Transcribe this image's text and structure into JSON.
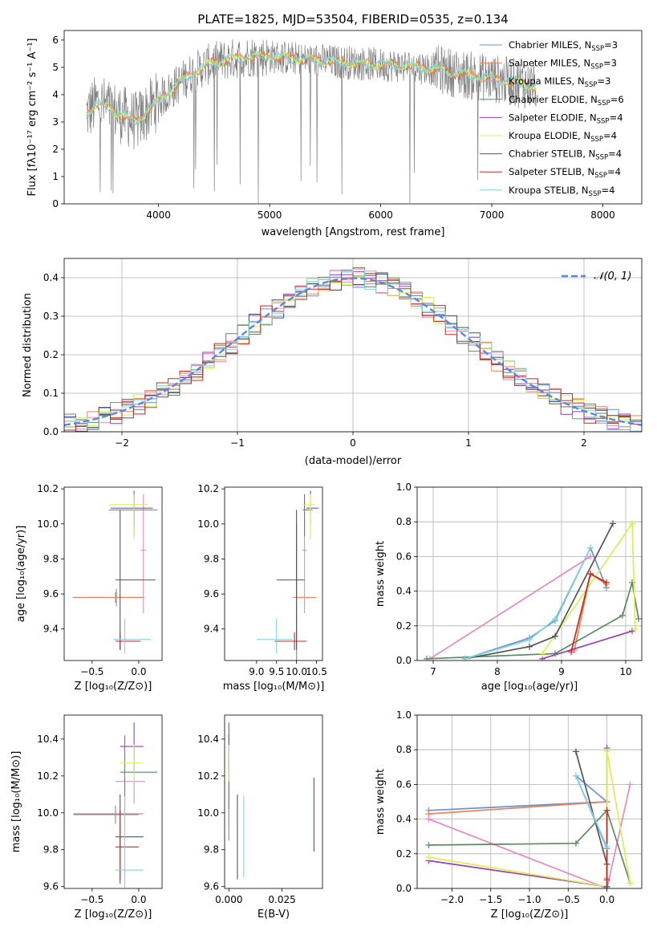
{
  "figure": {
    "title": "PLATE=1825, MJD=53504, FIBERID=0535, z=0.134"
  },
  "models": [
    {
      "name": "Chabrier MILES",
      "nssp": 3,
      "color": "#6a8fd6"
    },
    {
      "name": "Salpeter MILES",
      "nssp": 3,
      "color": "#e8825c"
    },
    {
      "name": "Kroupa MILES",
      "nssp": 3,
      "color": "#e589c0"
    },
    {
      "name": "Chabrier ELODIE",
      "nssp": 6,
      "color": "#5b8a62"
    },
    {
      "name": "Salpeter ELODIE",
      "nssp": 4,
      "color": "#9b3fb0"
    },
    {
      "name": "Kroupa ELODIE",
      "nssp": 4,
      "color": "#d9ee55"
    },
    {
      "name": "Chabrier STELIB",
      "nssp": 4,
      "color": "#555555"
    },
    {
      "name": "Salpeter STELIB",
      "nssp": 4,
      "color": "#c62a1c"
    },
    {
      "name": "Kroupa STELIB",
      "nssp": 4,
      "color": "#7fd4de"
    }
  ],
  "chart_data": [
    {
      "id": "spectrum",
      "type": "line",
      "xlabel": "wavelength [Angstrom, rest frame]",
      "ylabel": "Flux [fλ10⁻¹⁷ erg cm⁻² s⁻¹ A⁻¹]",
      "xlim": [
        3150,
        8350
      ],
      "ylim": [
        0,
        6.35
      ],
      "xticks": [
        4000,
        5000,
        6000,
        7000,
        8000
      ],
      "yticks": [
        0,
        1,
        2,
        3,
        4,
        5,
        6
      ],
      "legend_loc": "upper right",
      "data_color": "#808080",
      "continuum": {
        "x": [
          3350,
          3450,
          3600,
          3800,
          4000,
          4300,
          4500,
          4800,
          5000,
          5300,
          5600,
          6000,
          6400,
          6800,
          7000,
          7400
        ],
        "y": [
          3.3,
          3.7,
          3.4,
          3.0,
          3.8,
          4.8,
          5.2,
          5.4,
          5.4,
          5.3,
          5.2,
          5.1,
          5.0,
          4.7,
          4.6,
          4.3
        ]
      }
    },
    {
      "id": "residual_hist",
      "type": "histogram",
      "xlabel": "(data-model)/error",
      "ylabel": "Normed distribution",
      "xlim": [
        -2.5,
        2.5
      ],
      "ylim": [
        0,
        0.45
      ],
      "xticks": [
        -2,
        -1,
        0,
        1,
        2
      ],
      "yticks": [
        0.0,
        0.1,
        0.2,
        0.3,
        0.4
      ],
      "reference_curve": {
        "name": "𝒩(0, 1)",
        "color": "#5b87e0",
        "dashed": true,
        "mu": 0,
        "sigma": 1
      },
      "bin_width": 0.1,
      "bins_start": -2.5,
      "legend_loc": "upper right"
    },
    {
      "id": "age_vs_Z",
      "type": "errorbar",
      "xlabel": "Z [log₁₀(Z/Z⊙)]",
      "ylabel": "age  [log₁₀(age/yr)]",
      "xlim": [
        -0.8,
        0.25
      ],
      "ylim": [
        9.22,
        10.21
      ],
      "xticks": [
        -0.5,
        0.0
      ],
      "yticks": [
        9.4,
        9.6,
        9.8,
        10.0,
        10.2
      ],
      "points": [
        {
          "model": 0,
          "x": -0.24,
          "y": 9.58,
          "xerr": [
            0.47,
            0.3
          ],
          "yerr": [
            0.05,
            0.05
          ]
        },
        {
          "model": 1,
          "x": -0.25,
          "y": 9.58,
          "xerr": [
            0.45,
            0.28
          ],
          "yerr": [
            0.03,
            0.03
          ]
        },
        {
          "model": 2,
          "x": 0.05,
          "y": 9.85,
          "xerr": [
            0.03,
            0.03
          ],
          "yerr": [
            0.36,
            0.32
          ]
        },
        {
          "model": 3,
          "x": -0.05,
          "y": 10.08,
          "xerr": [
            0.27,
            0.25
          ],
          "yerr": [
            0.15,
            0.09
          ]
        },
        {
          "model": 4,
          "x": -0.05,
          "y": 10.09,
          "xerr": [
            0.25,
            0.2
          ],
          "yerr": [
            0.1,
            0.1
          ]
        },
        {
          "model": 5,
          "x": -0.05,
          "y": 10.11,
          "xerr": [
            0.27,
            0.15
          ],
          "yerr": [
            0.2,
            0.06
          ]
        },
        {
          "model": 6,
          "x": -0.2,
          "y": 9.68,
          "xerr": [
            0.05,
            0.38
          ],
          "yerr": [
            0.4,
            0.4
          ]
        },
        {
          "model": 7,
          "x": -0.2,
          "y": 9.33,
          "xerr": [
            0.05,
            0.22
          ],
          "yerr": [
            0.05,
            0.05
          ]
        },
        {
          "model": 8,
          "x": -0.15,
          "y": 9.34,
          "xerr": [
            0.12,
            0.28
          ],
          "yerr": [
            0.08,
            0.12
          ]
        }
      ]
    },
    {
      "id": "age_vs_mass",
      "type": "errorbar",
      "xlabel": "mass [log₁₀(M/M⊙)]",
      "ylabel": "",
      "xlim": [
        8.2,
        10.65
      ],
      "ylim": [
        9.22,
        10.21
      ],
      "xticks": [
        9.0,
        9.5,
        10.0,
        10.5
      ],
      "yticks": [
        9.4,
        9.6,
        9.8,
        10.0,
        10.2
      ],
      "points": [
        {
          "model": 0,
          "x": 10.0,
          "y": 9.58,
          "xerr": [
            0.1,
            0.2
          ],
          "yerr": [
            0.42,
            0.42
          ]
        },
        {
          "model": 1,
          "x": 10.0,
          "y": 9.58,
          "xerr": [
            0.05,
            0.5
          ],
          "yerr": [
            0.42,
            0.42
          ]
        },
        {
          "model": 2,
          "x": 10.2,
          "y": 9.85,
          "xerr": [
            0.05,
            0.05
          ],
          "yerr": [
            0.36,
            0.32
          ]
        },
        {
          "model": 3,
          "x": 10.2,
          "y": 10.08,
          "xerr": [
            0.05,
            0.2
          ],
          "yerr": [
            0.15,
            0.09
          ]
        },
        {
          "model": 4,
          "x": 10.35,
          "y": 10.09,
          "xerr": [
            0.1,
            0.2
          ],
          "yerr": [
            0.1,
            0.1
          ]
        },
        {
          "model": 5,
          "x": 10.35,
          "y": 10.11,
          "xerr": [
            0.2,
            0.1
          ],
          "yerr": [
            0.2,
            0.06
          ]
        },
        {
          "model": 6,
          "x": 10.0,
          "y": 9.68,
          "xerr": [
            0.5,
            0.2
          ],
          "yerr": [
            0.4,
            0.4
          ]
        },
        {
          "model": 7,
          "x": 9.95,
          "y": 9.33,
          "xerr": [
            0.5,
            0.3
          ],
          "yerr": [
            0.05,
            0.05
          ]
        },
        {
          "model": 8,
          "x": 9.5,
          "y": 9.34,
          "xerr": [
            0.5,
            0.4
          ],
          "yerr": [
            0.08,
            0.12
          ]
        }
      ]
    },
    {
      "id": "weight_vs_age",
      "type": "line",
      "xlabel": "age  [log₁₀(age/yr)]",
      "ylabel": "mass weight",
      "xlim": [
        6.75,
        10.25
      ],
      "ylim": [
        0,
        1
      ],
      "xticks": [
        7,
        8,
        9,
        10
      ],
      "yticks": [
        0.0,
        0.2,
        0.4,
        0.6,
        0.8,
        1.0
      ],
      "series": [
        {
          "model": 0,
          "x": [
            7.5,
            8.5,
            8.9,
            9.45,
            9.7
          ],
          "y": [
            0.01,
            0.13,
            0.23,
            0.65,
            0.42
          ]
        },
        {
          "model": 1,
          "x": [
            9.2,
            9.45,
            9.7
          ],
          "y": [
            0.06,
            0.5,
            0.44
          ]
        },
        {
          "model": 2,
          "x": [
            6.95,
            9.45
          ],
          "y": [
            0.01,
            0.6
          ]
        },
        {
          "model": 3,
          "x": [
            6.9,
            8.9,
            9.95,
            10.1,
            10.2
          ],
          "y": [
            0.01,
            0.04,
            0.26,
            0.45,
            0.24
          ]
        },
        {
          "model": 4,
          "x": [
            8.7,
            10.1
          ],
          "y": [
            0.01,
            0.17
          ]
        },
        {
          "model": 5,
          "x": [
            8.7,
            10.1,
            10.15
          ],
          "y": [
            0.04,
            0.79,
            0.18
          ]
        },
        {
          "model": 6,
          "x": [
            7.5,
            8.5,
            8.9,
            9.8
          ],
          "y": [
            0.01,
            0.08,
            0.14,
            0.79
          ]
        },
        {
          "model": 7,
          "x": [
            9.15,
            9.45,
            9.7
          ],
          "y": [
            0.05,
            0.5,
            0.45
          ]
        },
        {
          "model": 8,
          "x": [
            7.5,
            8.5,
            8.9,
            9.45
          ],
          "y": [
            0.01,
            0.12,
            0.24,
            0.65
          ]
        }
      ]
    },
    {
      "id": "mass_vs_Z",
      "type": "errorbar",
      "xlabel": "Z [log₁₀(Z/Z⊙)]",
      "ylabel": "mass [log₁₀(M/M⊙)]",
      "xlim": [
        -0.8,
        0.25
      ],
      "ylim": [
        9.59,
        10.53
      ],
      "xticks": [
        -0.5,
        0.0
      ],
      "yticks": [
        9.6,
        9.8,
        10.0,
        10.2,
        10.4
      ],
      "points": [
        {
          "model": 0,
          "x": -0.25,
          "y": 9.99,
          "xerr": [
            0.45,
            0.25
          ],
          "yerr": [
            0.05,
            0.05
          ]
        },
        {
          "model": 1,
          "x": -0.25,
          "y": 9.995,
          "xerr": [
            0.45,
            0.3
          ],
          "yerr": [
            0.03,
            0.03
          ]
        },
        {
          "model": 2,
          "x": -0.05,
          "y": 10.17,
          "xerr": [
            0.2,
            0.12
          ],
          "yerr": [
            0.12,
            0.1
          ]
        },
        {
          "model": 3,
          "x": -0.15,
          "y": 10.22,
          "xerr": [
            0.05,
            0.35
          ],
          "yerr": [
            0.2,
            0.2
          ]
        },
        {
          "model": 4,
          "x": -0.05,
          "y": 10.36,
          "xerr": [
            0.15,
            0.1
          ],
          "yerr": [
            0.13,
            0.13
          ]
        },
        {
          "model": 5,
          "x": -0.05,
          "y": 10.27,
          "xerr": [
            0.15,
            0.1
          ],
          "yerr": [
            0.1,
            0.1
          ]
        },
        {
          "model": 6,
          "x": -0.2,
          "y": 9.87,
          "xerr": [
            0.05,
            0.25
          ],
          "yerr": [
            0.23,
            0.23
          ]
        },
        {
          "model": 7,
          "x": -0.2,
          "y": 9.815,
          "xerr": [
            0.05,
            0.2
          ],
          "yerr": [
            0.2,
            0.2
          ]
        },
        {
          "model": 8,
          "x": -0.15,
          "y": 9.69,
          "xerr": [
            0.1,
            0.2
          ],
          "yerr": [
            0.4,
            0.4
          ]
        }
      ]
    },
    {
      "id": "mass_vs_ebv",
      "type": "errorbar",
      "xlabel": "E(B-V)",
      "ylabel": "",
      "xlim": [
        -0.002,
        0.044
      ],
      "ylim": [
        9.59,
        10.53
      ],
      "xticks": [
        0.0,
        0.025
      ],
      "xticklabels": [
        "0.000",
        "0.025"
      ],
      "yticks": [
        9.6,
        9.8,
        10.0,
        10.2,
        10.4
      ],
      "points": [
        {
          "model": 0,
          "x": 0.0,
          "y": 9.95,
          "xerr": [
            0,
            0
          ],
          "yerr": [
            0.1,
            0.1
          ]
        },
        {
          "model": 1,
          "x": 0.0,
          "y": 9.97,
          "xerr": [
            0,
            0
          ],
          "yerr": [
            0.05,
            0.05
          ]
        },
        {
          "model": 2,
          "x": 0.0,
          "y": 10.17,
          "xerr": [
            0,
            0
          ],
          "yerr": [
            0.12,
            0.1
          ]
        },
        {
          "model": 3,
          "x": 0.0,
          "y": 10.22,
          "xerr": [
            0,
            0
          ],
          "yerr": [
            0.2,
            0.2
          ]
        },
        {
          "model": 4,
          "x": 0.0,
          "y": 10.36,
          "xerr": [
            0,
            0
          ],
          "yerr": [
            0.13,
            0.13
          ]
        },
        {
          "model": 5,
          "x": 0.0,
          "y": 10.27,
          "xerr": [
            0,
            0
          ],
          "yerr": [
            0.1,
            0.1
          ]
        },
        {
          "model": 6,
          "x": 0.004,
          "y": 9.87,
          "xerr": [
            0,
            0
          ],
          "yerr": [
            0.23,
            0.23
          ]
        },
        {
          "model": 7,
          "x": 0.04,
          "y": 9.99,
          "xerr": [
            0,
            0
          ],
          "yerr": [
            0.2,
            0.2
          ]
        },
        {
          "model": 8,
          "x": 0.007,
          "y": 9.87,
          "xerr": [
            0,
            0
          ],
          "yerr": [
            0.22,
            0.22
          ]
        }
      ]
    },
    {
      "id": "weight_vs_Z",
      "type": "line",
      "xlabel": "Z [log₁₀(Z/Z⊙)]",
      "ylabel": "mass weight",
      "xlim": [
        -2.45,
        0.45
      ],
      "ylim": [
        0,
        1
      ],
      "xticks": [
        -2.0,
        -1.5,
        -1.0,
        -0.5,
        0.0
      ],
      "yticks": [
        0.0,
        0.2,
        0.4,
        0.6,
        0.8,
        1.0
      ],
      "series": [
        {
          "model": 0,
          "x": [
            -2.3,
            0.0,
            -0.4,
            0.0
          ],
          "y": [
            0.45,
            0.5,
            0.65,
            0.23
          ]
        },
        {
          "model": 1,
          "x": [
            -2.3,
            0.0,
            0.0
          ],
          "y": [
            0.43,
            0.5,
            0.06
          ]
        },
        {
          "model": 2,
          "x": [
            -2.3,
            0.0,
            0.3
          ],
          "y": [
            0.4,
            0.0,
            0.6
          ]
        },
        {
          "model": 3,
          "x": [
            -2.3,
            -0.4,
            0.0,
            0.3
          ],
          "y": [
            0.25,
            0.26,
            0.45,
            0.03
          ]
        },
        {
          "model": 4,
          "x": [
            -2.3,
            0.0,
            0.0
          ],
          "y": [
            0.16,
            0.01,
            0.81
          ]
        },
        {
          "model": 5,
          "x": [
            -2.3,
            0.0,
            0.0,
            0.3
          ],
          "y": [
            0.18,
            0.01,
            0.79,
            0.03
          ]
        },
        {
          "model": 6,
          "x": [
            -0.4,
            0.0,
            0.0
          ],
          "y": [
            0.79,
            0.14,
            0.01
          ]
        },
        {
          "model": 7,
          "x": [
            0.0,
            0.0
          ],
          "y": [
            0.05,
            0.45
          ]
        },
        {
          "model": 8,
          "x": [
            -0.4,
            0.0
          ],
          "y": [
            0.65,
            0.24
          ]
        }
      ]
    }
  ]
}
